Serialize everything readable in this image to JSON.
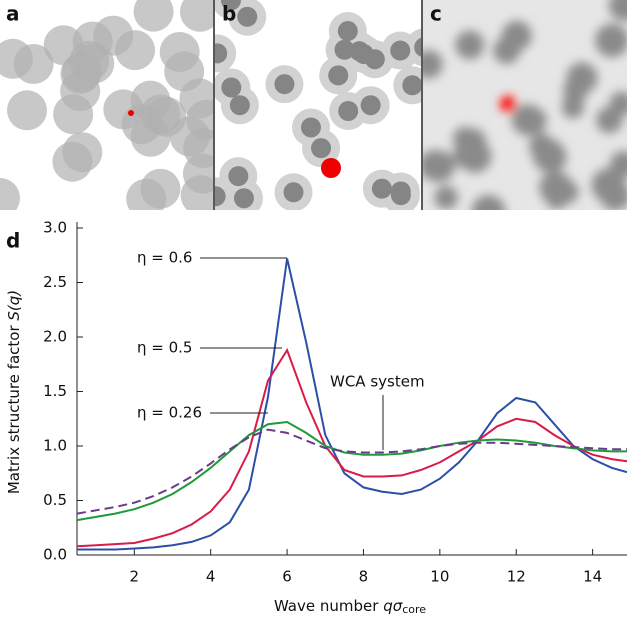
{
  "panels": [
    {
      "label": "a"
    },
    {
      "label": "b"
    },
    {
      "label": "c"
    }
  ],
  "chart_data": {
    "type": "line",
    "panel_label": "d",
    "xlabel": "Wave number ",
    "xlabel_sym": "qσ",
    "xlabel_sub": "core",
    "ylabel": "Matrix structure factor ",
    "ylabel_sym": "S(q)",
    "x": [
      0.5,
      1,
      1.5,
      2,
      2.5,
      3,
      3.5,
      4,
      4.5,
      5,
      5.5,
      6,
      6.5,
      7,
      7.5,
      8,
      8.5,
      9,
      9.5,
      10,
      10.5,
      11,
      11.5,
      12,
      12.5,
      13,
      13.5,
      14,
      14.5,
      14.9
    ],
    "series": [
      {
        "name": "η = 0.6",
        "color": "#2b4fa8",
        "dashed": false,
        "values": [
          0.05,
          0.05,
          0.05,
          0.06,
          0.07,
          0.09,
          0.12,
          0.18,
          0.3,
          0.6,
          1.45,
          2.72,
          1.95,
          1.1,
          0.75,
          0.62,
          0.58,
          0.56,
          0.6,
          0.7,
          0.85,
          1.05,
          1.3,
          1.44,
          1.4,
          1.2,
          1.0,
          0.88,
          0.8,
          0.76
        ]
      },
      {
        "name": "η = 0.5",
        "color": "#d81b4a",
        "dashed": false,
        "values": [
          0.08,
          0.09,
          0.1,
          0.11,
          0.15,
          0.2,
          0.28,
          0.4,
          0.6,
          0.95,
          1.6,
          1.88,
          1.4,
          1.0,
          0.78,
          0.72,
          0.72,
          0.73,
          0.78,
          0.85,
          0.95,
          1.05,
          1.18,
          1.25,
          1.22,
          1.1,
          1.0,
          0.92,
          0.88,
          0.86
        ]
      },
      {
        "name": "η = 0.26",
        "color": "#1f9a3a",
        "dashed": false,
        "values": [
          0.32,
          0.35,
          0.38,
          0.42,
          0.48,
          0.56,
          0.67,
          0.8,
          0.95,
          1.1,
          1.2,
          1.22,
          1.12,
          1.0,
          0.94,
          0.92,
          0.92,
          0.93,
          0.96,
          1.0,
          1.03,
          1.05,
          1.06,
          1.05,
          1.03,
          1.0,
          0.98,
          0.96,
          0.95,
          0.95
        ]
      },
      {
        "name": "WCA system",
        "color": "#6b3a8c",
        "dashed": true,
        "values": [
          0.38,
          0.41,
          0.44,
          0.48,
          0.54,
          0.62,
          0.72,
          0.84,
          0.97,
          1.08,
          1.15,
          1.12,
          1.05,
          0.98,
          0.95,
          0.94,
          0.94,
          0.95,
          0.97,
          1.0,
          1.02,
          1.03,
          1.03,
          1.02,
          1.01,
          1.0,
          0.99,
          0.98,
          0.97,
          0.97
        ]
      }
    ],
    "xlim": [
      0.5,
      14.9
    ],
    "ylim": [
      0,
      3
    ],
    "xticks": [
      2,
      4,
      6,
      8,
      10,
      12,
      14
    ],
    "yticks": [
      {
        "value": 0,
        "label": "0.0"
      },
      {
        "value": 0.5,
        "label": "0.5"
      },
      {
        "value": 1,
        "label": "1.0"
      },
      {
        "value": 1.5,
        "label": "1.5"
      },
      {
        "value": 2,
        "label": "2.0"
      },
      {
        "value": 2.5,
        "label": "2.5"
      },
      {
        "value": 3,
        "label": "3.0"
      }
    ]
  }
}
